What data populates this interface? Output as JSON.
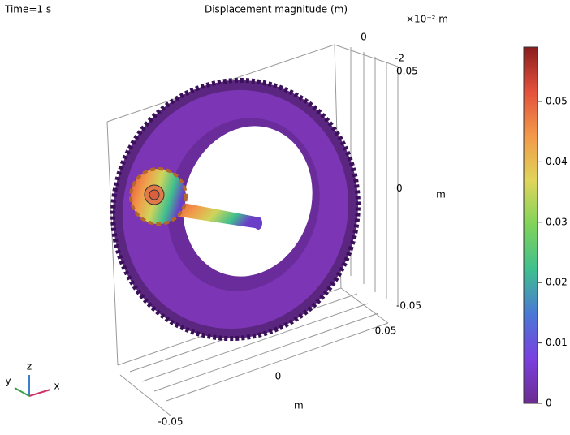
{
  "chart_data": {
    "type": "surface3d",
    "subtitle": "Time=1 s",
    "title": "Displacement magnitude (m)",
    "axes": [
      {
        "unit": "×10⁻² m",
        "lim": [
          -2,
          0
        ],
        "ticks": [
          0,
          -2
        ]
      },
      {
        "unit": "m",
        "lim": [
          -0.05,
          0.05
        ],
        "ticks": [
          0.05,
          0,
          -0.05
        ]
      },
      {
        "unit": "m",
        "lim": [
          -0.05,
          0.05
        ],
        "ticks": [
          0.05,
          0,
          -0.05
        ]
      }
    ],
    "triad": [
      "z",
      "y",
      "x"
    ],
    "colorbar": {
      "clim": [
        0,
        0.059
      ],
      "ticks": [
        0,
        0.01,
        0.02,
        0.03,
        0.04,
        0.05
      ],
      "colormap": [
        "#6b2d8f",
        "#7a3fe0",
        "#4a78d6",
        "#3fbf8f",
        "#7fd35a",
        "#e0d55a",
        "#f29a4a",
        "#e4503c",
        "#8b1c1c"
      ]
    }
  }
}
